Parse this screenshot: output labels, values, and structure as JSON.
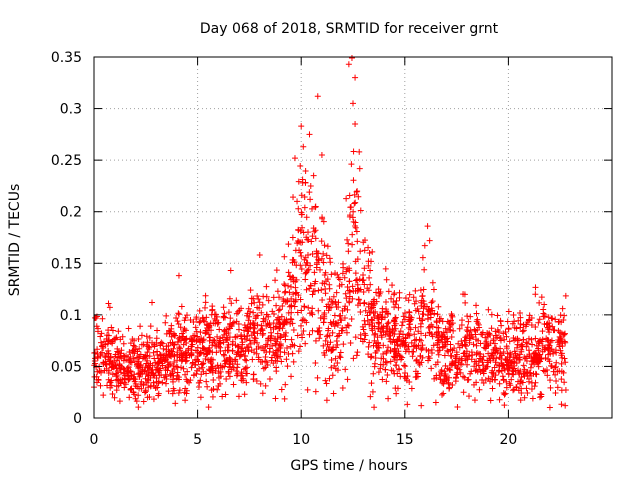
{
  "chart_data": {
    "type": "scatter",
    "title": "Day 068 of 2018, SRMTID for receiver grnt",
    "xlabel": "GPS time / hours",
    "ylabel": "SRMTID / TECUs",
    "xlim": [
      0,
      25
    ],
    "ylim": [
      0,
      0.35
    ],
    "xticks": [
      0,
      5,
      10,
      15,
      20
    ],
    "xtick_labels": [
      "0",
      "5",
      "10",
      "15",
      "20"
    ],
    "yticks": [
      0,
      0.05,
      0.1,
      0.15,
      0.2,
      0.25,
      0.3,
      0.35
    ],
    "ytick_labels": [
      "0",
      "0.05",
      "0.1",
      "0.15",
      "0.2",
      "0.25",
      "0.3",
      "0.35"
    ],
    "grid": true,
    "marker": "+",
    "series": [
      {
        "name": "SRMTID",
        "color": "#ff0000",
        "x_range": [
          0.0,
          22.8
        ],
        "profile": [
          [
            0.0,
            0.06
          ],
          [
            0.5,
            0.062
          ],
          [
            1.0,
            0.055
          ],
          [
            1.5,
            0.05
          ],
          [
            2.0,
            0.05
          ],
          [
            3.0,
            0.05
          ],
          [
            4.0,
            0.06
          ],
          [
            5.0,
            0.065
          ],
          [
            6.0,
            0.065
          ],
          [
            7.0,
            0.07
          ],
          [
            8.0,
            0.08
          ],
          [
            9.0,
            0.08
          ],
          [
            9.5,
            0.11
          ],
          [
            10.0,
            0.16
          ],
          [
            10.5,
            0.14
          ],
          [
            11.0,
            0.12
          ],
          [
            11.5,
            0.08
          ],
          [
            12.0,
            0.09
          ],
          [
            12.5,
            0.18
          ],
          [
            13.0,
            0.12
          ],
          [
            13.5,
            0.09
          ],
          [
            14.0,
            0.08
          ],
          [
            15.0,
            0.07
          ],
          [
            15.5,
            0.08
          ],
          [
            16.0,
            0.1
          ],
          [
            16.5,
            0.07
          ],
          [
            17.0,
            0.06
          ],
          [
            18.0,
            0.065
          ],
          [
            19.0,
            0.06
          ],
          [
            20.0,
            0.055
          ],
          [
            21.0,
            0.06
          ],
          [
            22.0,
            0.065
          ],
          [
            22.8,
            0.065
          ]
        ],
        "highlights": [
          {
            "x": 12.45,
            "y": 0.349
          },
          {
            "x": 12.3,
            "y": 0.343
          },
          {
            "x": 12.6,
            "y": 0.33
          },
          {
            "x": 12.5,
            "y": 0.305
          },
          {
            "x": 12.6,
            "y": 0.285
          },
          {
            "x": 12.8,
            "y": 0.258
          },
          {
            "x": 12.7,
            "y": 0.22
          },
          {
            "x": 12.35,
            "y": 0.195
          },
          {
            "x": 10.8,
            "y": 0.312
          },
          {
            "x": 10.0,
            "y": 0.283
          },
          {
            "x": 10.4,
            "y": 0.275
          },
          {
            "x": 10.1,
            "y": 0.263
          },
          {
            "x": 9.7,
            "y": 0.252
          },
          {
            "x": 10.6,
            "y": 0.235
          },
          {
            "x": 9.8,
            "y": 0.21
          },
          {
            "x": 10.7,
            "y": 0.205
          },
          {
            "x": 16.1,
            "y": 0.186
          },
          {
            "x": 16.2,
            "y": 0.172
          },
          {
            "x": 6.6,
            "y": 0.143
          },
          {
            "x": 4.1,
            "y": 0.138
          },
          {
            "x": 8.0,
            "y": 0.158
          },
          {
            "x": 21.3,
            "y": 0.12
          },
          {
            "x": 0.7,
            "y": 0.111
          },
          {
            "x": 2.8,
            "y": 0.112
          },
          {
            "x": 16.5,
            "y": 0.015
          },
          {
            "x": 1.7,
            "y": 0.02
          },
          {
            "x": 2.4,
            "y": 0.016
          },
          {
            "x": 13.3,
            "y": 0.16
          },
          {
            "x": 11.0,
            "y": 0.255
          }
        ]
      }
    ]
  }
}
